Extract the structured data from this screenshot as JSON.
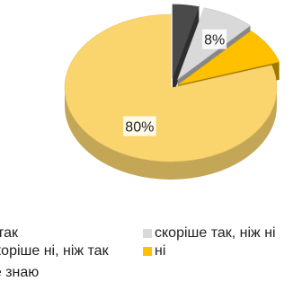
{
  "chart_data": {
    "type": "pie",
    "style": "3d-exploded",
    "slices": [
      {
        "label": "так",
        "value": 4,
        "color": "#4a4a4a",
        "data_label": ""
      },
      {
        "label": "скоріше так, ніж ні",
        "value": 8,
        "color": "#d9d9d9",
        "data_label": "8%"
      },
      {
        "label": "ні",
        "value": 8,
        "color": "#ffc000",
        "data_label": ""
      },
      {
        "label": "скоріше ні, ніж так",
        "value": 80,
        "color": "#fad56e",
        "data_label": "80%"
      }
    ],
    "legend": {
      "placement": "bottom",
      "entries": [
        {
          "label": "так",
          "color": "#4a4a4a"
        },
        {
          "label": "скоріше так, ніж ні",
          "color": "#d9d9d9"
        },
        {
          "label": "скоріше ні, ніж так",
          "color": "#fad56e"
        },
        {
          "label": "ні",
          "color": "#ffc000"
        },
        {
          "label": "не знаю",
          "color": "#ffffff"
        }
      ]
    }
  }
}
